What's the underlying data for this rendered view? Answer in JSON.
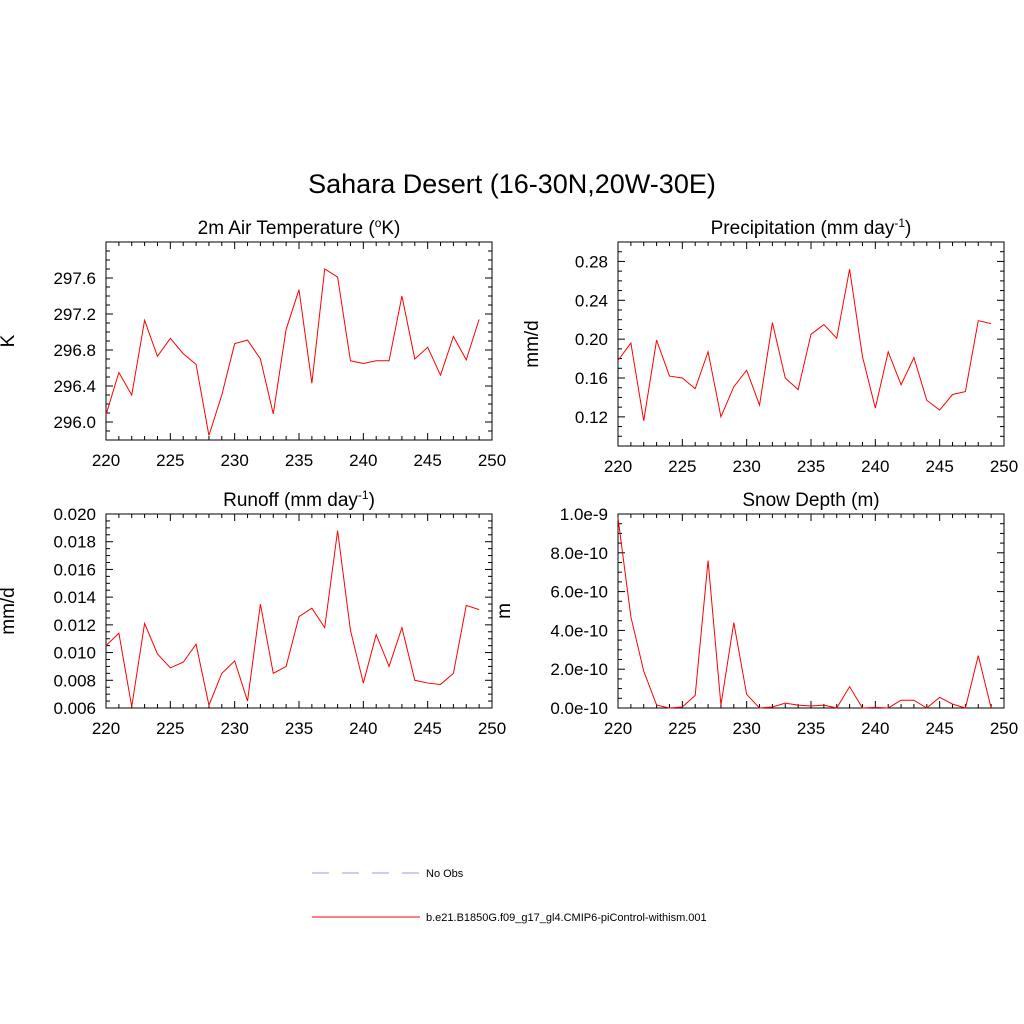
{
  "figure": {
    "title": "Sahara Desert (16-30N,20W-30E)"
  },
  "legend": {
    "entries": [
      {
        "label": "No Obs",
        "color": "#9999ee",
        "dash": "dashed"
      },
      {
        "label": "b.e21.B1850G.f09_g17_gl4.CMIP6-piControl-withism.001",
        "color": "#ff0000",
        "dash": "solid"
      }
    ]
  },
  "chart_data": [
    {
      "type": "line",
      "title": "2m Air Temperature (",
      "title_super": "o",
      "title_after": "K)",
      "ylabel": "K",
      "xlim": [
        220,
        250
      ],
      "ylim": [
        295.8,
        298.0
      ],
      "xticks": [
        220,
        225,
        230,
        235,
        240,
        245,
        250
      ],
      "xtick_labels": [
        "220",
        "225",
        "230",
        "235",
        "240",
        "245",
        "250"
      ],
      "yticks": [
        296.0,
        296.4,
        296.8,
        297.2,
        297.6
      ],
      "ytick_labels": [
        "296.0",
        "296.4",
        "296.8",
        "297.2",
        "297.6"
      ],
      "series": [
        {
          "color": "#ff0000",
          "x": [
            220,
            221,
            222,
            223,
            224,
            225,
            226,
            227,
            228,
            229,
            230,
            231,
            232,
            233,
            234,
            235,
            236,
            237,
            238,
            239,
            240,
            241,
            242,
            243,
            244,
            245,
            246,
            247,
            248,
            249
          ],
          "values": [
            296.08,
            296.55,
            296.3,
            297.13,
            296.73,
            296.93,
            296.76,
            296.64,
            295.85,
            296.3,
            296.87,
            296.91,
            296.7,
            296.09,
            297.03,
            297.47,
            296.43,
            297.7,
            297.61,
            296.68,
            296.65,
            296.68,
            296.68,
            297.4,
            296.7,
            296.83,
            296.52,
            296.95,
            296.69,
            297.14
          ]
        }
      ]
    },
    {
      "type": "line",
      "title": "Precipitation (mm day",
      "title_super": "-1",
      "title_after": ")",
      "ylabel": "mm/d",
      "xlim": [
        220,
        250
      ],
      "ylim": [
        0.09,
        0.3
      ],
      "xticks": [
        220,
        225,
        230,
        235,
        240,
        245,
        250
      ],
      "xtick_labels": [
        "220",
        "225",
        "230",
        "235",
        "240",
        "245",
        "250"
      ],
      "yticks": [
        0.12,
        0.16,
        0.2,
        0.24,
        0.28
      ],
      "ytick_labels": [
        "0.12",
        "0.16",
        "0.20",
        "0.24",
        "0.28"
      ],
      "series": [
        {
          "color": "#ff0000",
          "x": [
            220,
            221,
            222,
            223,
            224,
            225,
            226,
            227,
            228,
            229,
            230,
            231,
            232,
            233,
            234,
            235,
            236,
            237,
            238,
            239,
            240,
            241,
            242,
            243,
            244,
            245,
            246,
            247,
            248,
            249
          ],
          "values": [
            0.178,
            0.196,
            0.116,
            0.199,
            0.162,
            0.16,
            0.149,
            0.187,
            0.12,
            0.151,
            0.168,
            0.132,
            0.217,
            0.16,
            0.148,
            0.205,
            0.215,
            0.201,
            0.272,
            0.182,
            0.129,
            0.187,
            0.153,
            0.181,
            0.137,
            0.127,
            0.143,
            0.146,
            0.219,
            0.216
          ]
        }
      ]
    },
    {
      "type": "line",
      "title": "Runoff (mm day",
      "title_super": "-1",
      "title_after": ")",
      "ylabel": "mm/d",
      "xlim": [
        220,
        250
      ],
      "ylim": [
        0.006,
        0.02
      ],
      "xticks": [
        220,
        225,
        230,
        235,
        240,
        245,
        250
      ],
      "xtick_labels": [
        "220",
        "225",
        "230",
        "235",
        "240",
        "245",
        "250"
      ],
      "yticks": [
        0.006,
        0.008,
        0.01,
        0.012,
        0.014,
        0.016,
        0.018,
        0.02
      ],
      "ytick_labels": [
        "0.006",
        "0.008",
        "0.010",
        "0.012",
        "0.014",
        "0.016",
        "0.018",
        "0.020"
      ],
      "series": [
        {
          "color": "#ff0000",
          "x": [
            220,
            221,
            222,
            223,
            224,
            225,
            226,
            227,
            228,
            229,
            230,
            231,
            232,
            233,
            234,
            235,
            236,
            237,
            238,
            239,
            240,
            241,
            242,
            243,
            244,
            245,
            246,
            247,
            248,
            249
          ],
          "values": [
            0.0105,
            0.0114,
            0.0061,
            0.0121,
            0.0099,
            0.0089,
            0.0093,
            0.0106,
            0.0062,
            0.0085,
            0.0094,
            0.0065,
            0.0135,
            0.0085,
            0.009,
            0.0126,
            0.0132,
            0.0118,
            0.0188,
            0.0116,
            0.0078,
            0.0113,
            0.009,
            0.0118,
            0.008,
            0.0078,
            0.0077,
            0.0085,
            0.0134,
            0.0131
          ]
        }
      ]
    },
    {
      "type": "line",
      "title": "Snow Depth (m)",
      "title_super": "",
      "title_after": "",
      "ylabel": "m",
      "xlim": [
        220,
        250
      ],
      "ylim": [
        0,
        1e-09
      ],
      "xticks": [
        220,
        225,
        230,
        235,
        240,
        245,
        250
      ],
      "xtick_labels": [
        "220",
        "225",
        "230",
        "235",
        "240",
        "245",
        "250"
      ],
      "yticks": [
        0,
        2e-10,
        4e-10,
        6e-10,
        8e-10,
        1e-09
      ],
      "ytick_labels": [
        "0.0e-10",
        "2.0e-10",
        "4.0e-10",
        "6.0e-10",
        "8.0e-10",
        "1.0e-9"
      ],
      "series": [
        {
          "color": "#ff0000",
          "x": [
            220,
            221,
            222,
            223,
            224,
            225,
            226,
            227,
            228,
            229,
            230,
            231,
            232,
            233,
            234,
            235,
            236,
            237,
            238,
            239,
            240,
            241,
            242,
            243,
            244,
            245,
            246,
            247,
            248,
            249
          ],
          "values": [
            9.8e-10,
            4.7e-10,
            1.9e-10,
            1.5e-11,
            0,
            5e-12,
            6.5e-11,
            7.6e-10,
            1.5e-11,
            4.4e-10,
            7e-11,
            0,
            5e-12,
            2.5e-11,
            1.5e-11,
            1e-11,
            1.5e-11,
            0,
            1.1e-10,
            0,
            3e-12,
            0,
            4e-11,
            4e-11,
            0,
            5.5e-11,
            2e-11,
            0,
            2.7e-10,
            0
          ]
        }
      ]
    }
  ]
}
